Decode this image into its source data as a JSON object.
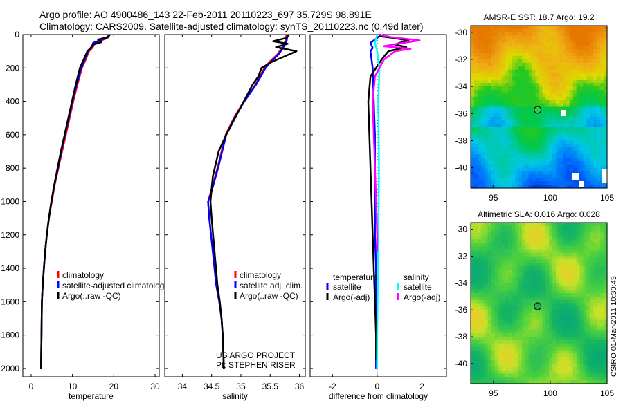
{
  "title_line1": "Argo profile: AO 4900486_143 22-Feb-2011 20110223_697 35.729S 98.891E",
  "title_line2": "Climatology: CARS2009. Satellite-adjusted climatology: synTS_20110223.nc (0.49d later)",
  "footer_side": "CSIRO 01-Mar-2011 10:30:43",
  "project_line1": "US ARGO PROJECT",
  "project_line2": "PI: STEPHEN RISER",
  "colors": {
    "red": "#ff0000",
    "blue": "#0000ff",
    "black": "#000000",
    "cyan": "#00ffff",
    "magenta": "#ff00ff"
  },
  "chart_data": [
    {
      "id": "temperature",
      "type": "line",
      "xlabel": "temperature",
      "ylabel": "",
      "xlim": [
        -2,
        31
      ],
      "ylim": [
        2050,
        0
      ],
      "xticks": [
        0,
        10,
        20,
        30
      ],
      "yticks": [
        0,
        200,
        400,
        600,
        800,
        1000,
        1200,
        1400,
        1600,
        1800,
        2000
      ],
      "legend": {
        "position": "bottom-right",
        "entries": [
          "climatology",
          "satellite-adjusted climatolog",
          "Argo(..raw -QC)"
        ]
      },
      "series": [
        {
          "name": "climatology",
          "color": "#ff0000",
          "x": [
            18.8,
            18.5,
            15.5,
            14.8,
            14.0,
            13.2,
            12.3,
            11.2,
            10.2,
            9.3,
            8.4,
            7.5,
            6.6,
            5.7,
            5.0,
            4.3,
            3.8,
            3.4,
            3.1,
            2.8,
            2.6,
            2.5,
            2.4
          ],
          "y": [
            0,
            20,
            50,
            80,
            100,
            150,
            200,
            300,
            400,
            500,
            600,
            700,
            800,
            900,
            1000,
            1100,
            1200,
            1300,
            1400,
            1500,
            1600,
            1800,
            2000
          ]
        },
        {
          "name": "satellite-adjusted climatology",
          "color": "#0000ff",
          "x": [
            19.0,
            18.2,
            15.0,
            14.6,
            13.8,
            13.0,
            12.1,
            11.0,
            10.0,
            9.1,
            8.2,
            7.3,
            6.5,
            5.6,
            4.9,
            4.3,
            3.8,
            3.4,
            3.1,
            2.8,
            2.6,
            2.5,
            2.4
          ],
          "y": [
            0,
            20,
            50,
            80,
            100,
            150,
            200,
            300,
            400,
            500,
            600,
            700,
            800,
            900,
            1000,
            1100,
            1200,
            1300,
            1400,
            1500,
            1600,
            1800,
            2000
          ]
        },
        {
          "name": "Argo(..raw -QC)",
          "color": "#000000",
          "x": [
            19.1,
            18.6,
            16.2,
            17.0,
            15.0,
            14.4,
            13.6,
            12.7,
            11.8,
            10.8,
            9.9,
            9.0,
            8.1,
            7.2,
            6.4,
            5.6,
            4.9,
            4.3,
            3.8,
            3.4,
            3.1,
            2.8,
            2.6,
            2.5,
            2.4
          ],
          "y": [
            0,
            15,
            30,
            45,
            60,
            80,
            100,
            150,
            200,
            300,
            400,
            500,
            600,
            700,
            800,
            900,
            1000,
            1100,
            1200,
            1300,
            1400,
            1500,
            1600,
            1800,
            2000
          ]
        }
      ]
    },
    {
      "id": "salinity",
      "type": "line",
      "xlabel": "salinity",
      "ylabel": "",
      "xlim": [
        33.7,
        36.1
      ],
      "ylim": [
        2050,
        0
      ],
      "xticks": [
        34,
        34.5,
        35,
        35.5,
        36
      ],
      "xticklabels": [
        "34",
        "34.5",
        "35",
        "35.5",
        "36"
      ],
      "legend": {
        "position": "bottom-right",
        "entries": [
          "climatology",
          "satellite adj. clim.",
          "Argo(..raw -QC)"
        ]
      },
      "series": [
        {
          "name": "climatology",
          "color": "#ff0000",
          "x": [
            35.78,
            35.76,
            35.7,
            35.62,
            35.5,
            35.4,
            35.25,
            35.05,
            34.88,
            34.74,
            34.6,
            34.48,
            34.44,
            34.46,
            34.52,
            34.58,
            34.63,
            34.67,
            34.69,
            34.71
          ],
          "y": [
            0,
            40,
            80,
            120,
            160,
            200,
            300,
            400,
            500,
            600,
            800,
            950,
            1000,
            1100,
            1300,
            1500,
            1600,
            1700,
            1800,
            2000
          ]
        },
        {
          "name": "satellite adj. clim.",
          "color": "#0000ff",
          "x": [
            35.8,
            35.78,
            35.72,
            35.64,
            35.52,
            35.42,
            35.26,
            35.06,
            34.89,
            34.75,
            34.61,
            34.49,
            34.44,
            34.46,
            34.52,
            34.58,
            34.63,
            34.67,
            34.69,
            34.71
          ],
          "y": [
            0,
            40,
            80,
            120,
            160,
            200,
            300,
            400,
            500,
            600,
            800,
            950,
            1000,
            1100,
            1300,
            1500,
            1600,
            1700,
            1800,
            2000
          ]
        },
        {
          "name": "Argo(..raw -QC)",
          "color": "#000000",
          "x": [
            35.82,
            35.78,
            35.55,
            35.8,
            35.6,
            35.95,
            35.55,
            35.35,
            35.3,
            35.2,
            35.05,
            34.9,
            34.75,
            34.62,
            34.52,
            34.48,
            34.5,
            34.55,
            34.6,
            34.64,
            34.67,
            34.69,
            34.71
          ],
          "y": [
            0,
            20,
            40,
            55,
            75,
            100,
            160,
            200,
            250,
            300,
            400,
            500,
            600,
            700,
            850,
            1000,
            1100,
            1300,
            1500,
            1600,
            1700,
            1800,
            2000
          ]
        }
      ]
    },
    {
      "id": "difference",
      "type": "line",
      "xlabel": "difference from climatology",
      "ylabel": "",
      "xlim": [
        -3,
        3.1
      ],
      "ylim": [
        2050,
        0
      ],
      "xticks": [
        -2,
        0,
        2
      ],
      "legend": {
        "position": "bottom",
        "entries": [
          "temperature",
          "satellite",
          "Argo(-adj)",
          "salinity",
          "satellite",
          "Argo(-adj)"
        ]
      },
      "series": [
        {
          "name": "temperature satellite",
          "color": "#0000ff",
          "x": [
            0.2,
            0.0,
            -0.3,
            -0.2,
            -0.3,
            -0.25,
            -0.2,
            -0.15,
            -0.1,
            -0.1,
            -0.1,
            -0.1,
            -0.05,
            -0.05,
            -0.05
          ],
          "y": [
            0,
            20,
            50,
            80,
            100,
            150,
            200,
            400,
            600,
            800,
            1000,
            1200,
            1400,
            1700,
            2000
          ]
        },
        {
          "name": "temperature Argo(-adj)",
          "color": "#000000",
          "x": [
            0.3,
            0.1,
            0.7,
            1.4,
            1.0,
            0.8,
            1.3,
            0.5,
            0.2,
            -0.3,
            -0.4,
            -0.35,
            -0.3,
            -0.25,
            -0.2,
            -0.15,
            -0.1,
            -0.05,
            -0.05
          ],
          "y": [
            0,
            10,
            20,
            35,
            50,
            60,
            75,
            100,
            150,
            250,
            400,
            600,
            800,
            1000,
            1200,
            1400,
            1600,
            1800,
            1950
          ]
        },
        {
          "name": "salinity satellite",
          "color": "#00ffff",
          "x": [
            0.0,
            -0.1,
            0.0,
            0.1,
            0.05,
            0.08,
            0.05,
            0.02,
            0.0,
            -0.01
          ],
          "y": [
            0,
            50,
            100,
            200,
            400,
            800,
            1200,
            1600,
            1800,
            2000
          ]
        },
        {
          "name": "salinity Argo(-adj)",
          "color": "#ff00ff",
          "x": [
            0.1,
            0.6,
            1.9,
            0.9,
            0.3,
            1.5,
            0.8,
            0.3,
            -0.1,
            -0.2,
            -0.15,
            -0.1,
            -0.05,
            0.0,
            0.0
          ],
          "y": [
            0,
            15,
            35,
            55,
            70,
            85,
            100,
            150,
            250,
            400,
            600,
            800,
            1000,
            1200,
            1300
          ]
        }
      ]
    },
    {
      "id": "sst_map",
      "type": "heatmap",
      "title": "AMSR-E SST: 18.7 Argo: 19.2",
      "xlim": [
        93,
        105
      ],
      "ylim": [
        -41.5,
        -29.5
      ],
      "xticks": [
        95,
        100,
        105
      ],
      "yticks": [
        -30,
        -32,
        -34,
        -36,
        -38,
        -40
      ],
      "marker": {
        "lon": 98.891,
        "lat": -35.729
      }
    },
    {
      "id": "sla_map",
      "type": "heatmap",
      "title": "Altimetric SLA: 0.016 Argo: 0.028",
      "xlim": [
        93,
        105
      ],
      "ylim": [
        -41.5,
        -29.5
      ],
      "xticks": [
        95,
        100,
        105
      ],
      "yticks": [
        -30,
        -32,
        -34,
        -36,
        -38,
        -40
      ],
      "marker": {
        "lon": 98.891,
        "lat": -35.729
      }
    }
  ]
}
